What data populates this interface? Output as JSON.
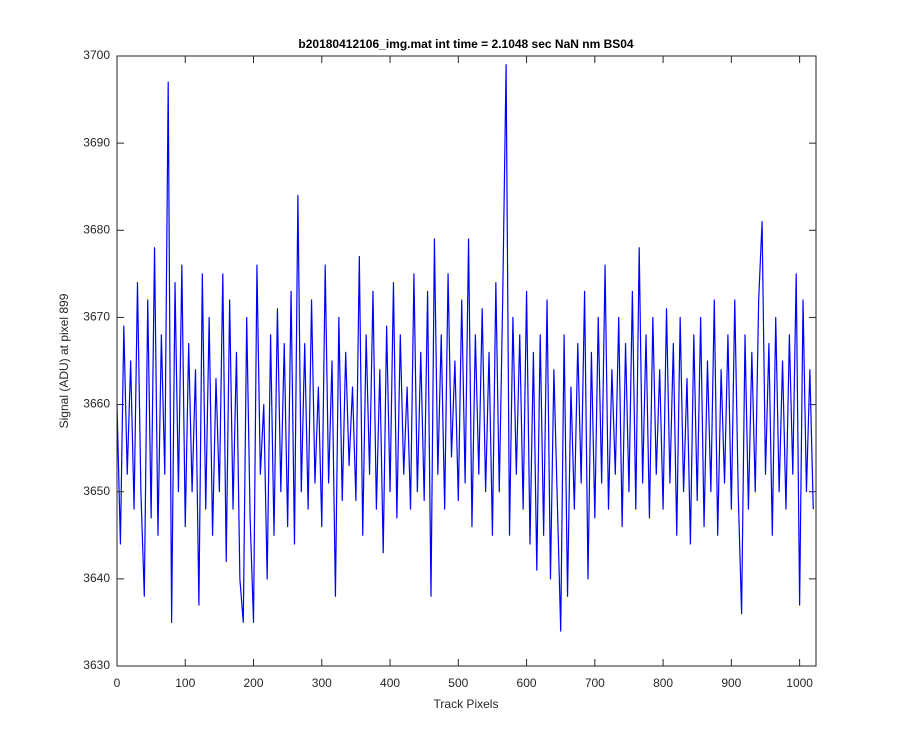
{
  "chart_data": {
    "type": "line",
    "title": "b20180412106_img.mat int time = 2.1048 sec  NaN nm BS04",
    "x_label": "Track Pixels",
    "y_label": "Signal (ADU) at pixel 899",
    "xlim": [
      0,
      1024
    ],
    "ylim": [
      3630,
      3700
    ],
    "xticks": [
      0,
      100,
      200,
      300,
      400,
      500,
      600,
      700,
      800,
      900,
      1000
    ],
    "yticks": [
      3630,
      3640,
      3650,
      3660,
      3670,
      3680,
      3690,
      3700
    ],
    "grid": false,
    "x": [
      0,
      5,
      10,
      15,
      20,
      25,
      30,
      35,
      40,
      45,
      50,
      55,
      60,
      65,
      70,
      75,
      80,
      85,
      90,
      95,
      100,
      105,
      110,
      115,
      120,
      125,
      130,
      135,
      140,
      145,
      150,
      155,
      160,
      165,
      170,
      175,
      180,
      185,
      190,
      195,
      200,
      205,
      210,
      215,
      220,
      225,
      230,
      235,
      240,
      245,
      250,
      255,
      260,
      265,
      270,
      275,
      280,
      285,
      290,
      295,
      300,
      305,
      310,
      315,
      320,
      325,
      330,
      335,
      340,
      345,
      350,
      355,
      360,
      365,
      370,
      375,
      380,
      385,
      390,
      395,
      400,
      405,
      410,
      415,
      420,
      425,
      430,
      435,
      440,
      445,
      450,
      455,
      460,
      465,
      470,
      475,
      480,
      485,
      490,
      495,
      500,
      505,
      510,
      515,
      520,
      525,
      530,
      535,
      540,
      545,
      550,
      555,
      560,
      565,
      570,
      575,
      580,
      585,
      590,
      595,
      600,
      605,
      610,
      615,
      620,
      625,
      630,
      635,
      640,
      645,
      650,
      655,
      660,
      665,
      670,
      675,
      680,
      685,
      690,
      695,
      700,
      705,
      710,
      715,
      720,
      725,
      730,
      735,
      740,
      745,
      750,
      755,
      760,
      765,
      770,
      775,
      780,
      785,
      790,
      795,
      800,
      805,
      810,
      815,
      820,
      825,
      830,
      835,
      840,
      845,
      850,
      855,
      860,
      865,
      870,
      875,
      880,
      885,
      890,
      895,
      900,
      905,
      910,
      915,
      920,
      925,
      930,
      935,
      940,
      945,
      950,
      955,
      960,
      965,
      970,
      975,
      980,
      985,
      990,
      995,
      1000,
      1005,
      1010,
      1015,
      1020
    ],
    "series": [
      {
        "color": "#0000ff",
        "values": [
          3660,
          3644,
          3669,
          3652,
          3665,
          3648,
          3674,
          3650,
          3638,
          3672,
          3647,
          3678,
          3645,
          3668,
          3652,
          3697,
          3635,
          3674,
          3650,
          3676,
          3646,
          3667,
          3650,
          3664,
          3637,
          3675,
          3648,
          3670,
          3645,
          3663,
          3650,
          3675,
          3642,
          3672,
          3648,
          3666,
          3640,
          3635,
          3670,
          3647,
          3635,
          3676,
          3652,
          3660,
          3640,
          3668,
          3645,
          3671,
          3650,
          3667,
          3646,
          3673,
          3644,
          3684,
          3650,
          3667,
          3648,
          3672,
          3651,
          3662,
          3646,
          3676,
          3651,
          3665,
          3638,
          3670,
          3649,
          3666,
          3653,
          3662,
          3649,
          3677,
          3645,
          3668,
          3652,
          3673,
          3648,
          3664,
          3643,
          3669,
          3650,
          3674,
          3647,
          3668,
          3652,
          3662,
          3648,
          3675,
          3650,
          3666,
          3649,
          3673,
          3638,
          3679,
          3652,
          3668,
          3648,
          3675,
          3654,
          3665,
          3649,
          3672,
          3651,
          3679,
          3646,
          3668,
          3652,
          3671,
          3650,
          3666,
          3645,
          3674,
          3650,
          3672,
          3699,
          3645,
          3670,
          3652,
          3668,
          3648,
          3673,
          3644,
          3666,
          3641,
          3668,
          3645,
          3672,
          3640,
          3664,
          3649,
          3634,
          3668,
          3638,
          3662,
          3648,
          3667,
          3651,
          3673,
          3640,
          3666,
          3647,
          3670,
          3651,
          3676,
          3648,
          3664,
          3652,
          3670,
          3646,
          3667,
          3650,
          3673,
          3648,
          3678,
          3651,
          3668,
          3647,
          3670,
          3652,
          3664,
          3648,
          3671,
          3651,
          3667,
          3645,
          3670,
          3650,
          3663,
          3644,
          3668,
          3649,
          3670,
          3646,
          3665,
          3650,
          3672,
          3645,
          3664,
          3651,
          3668,
          3648,
          3672,
          3650,
          3636,
          3668,
          3648,
          3666,
          3650,
          3672,
          3681,
          3652,
          3667,
          3645,
          3670,
          3650,
          3665,
          3648,
          3668,
          3652,
          3675,
          3637,
          3672,
          3650,
          3664,
          3648
        ]
      }
    ]
  }
}
